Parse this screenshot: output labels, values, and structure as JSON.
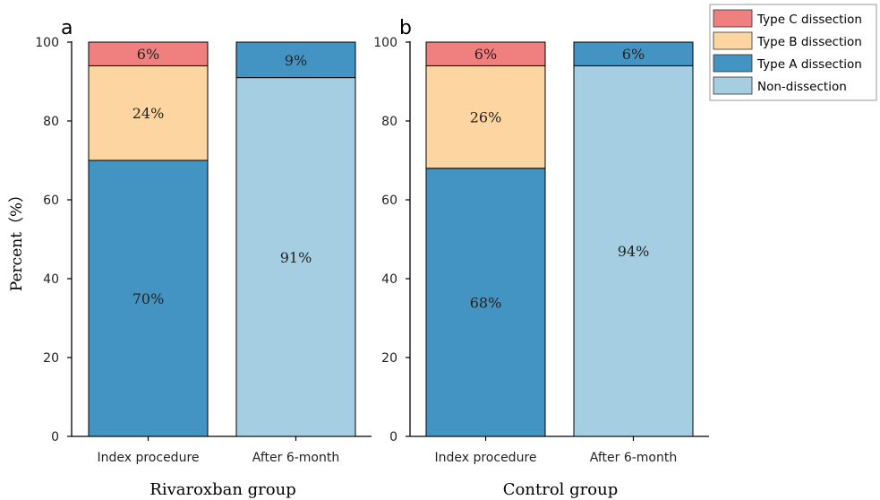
{
  "figure": {
    "legend_placement": "top-right"
  },
  "chart_data": [
    {
      "type": "bar",
      "stacked": true,
      "panel_label": "a",
      "xlabel": "Rivaroxban group",
      "ylabel": "Percent（%）",
      "ylim": [
        0,
        100
      ],
      "yticks": [
        "0",
        "20",
        "40",
        "60",
        "80",
        "100"
      ],
      "grid": false,
      "categories": [
        "Index procedure",
        "After 6-month"
      ],
      "series": [
        {
          "name": "Non-dissection",
          "color": "#a6cee3",
          "values": [
            0,
            91
          ],
          "labels": [
            "",
            "91%"
          ]
        },
        {
          "name": "Type A dissection",
          "color": "#4393c3",
          "values": [
            70,
            9
          ],
          "labels": [
            "70%",
            "9%"
          ]
        },
        {
          "name": "Type B dissection",
          "color": "#fdd5a0",
          "values": [
            24,
            0
          ],
          "labels": [
            "24%",
            ""
          ]
        },
        {
          "name": "Type C dissection",
          "color": "#f08080",
          "values": [
            6,
            0
          ],
          "labels": [
            "6%",
            ""
          ]
        }
      ]
    },
    {
      "type": "bar",
      "stacked": true,
      "panel_label": "b",
      "xlabel": "Control group",
      "ylabel": "",
      "ylim": [
        0,
        100
      ],
      "yticks": [
        "0",
        "20",
        "40",
        "60",
        "80",
        "100"
      ],
      "grid": false,
      "categories": [
        "Index procedure",
        "After 6-month"
      ],
      "series": [
        {
          "name": "Non-dissection",
          "color": "#a6cee3",
          "values": [
            0,
            94
          ],
          "labels": [
            "",
            "94%"
          ]
        },
        {
          "name": "Type A dissection",
          "color": "#4393c3",
          "values": [
            68,
            6
          ],
          "labels": [
            "68%",
            "6%"
          ]
        },
        {
          "name": "Type B dissection",
          "color": "#fdd5a0",
          "values": [
            26,
            0
          ],
          "labels": [
            "26%",
            ""
          ]
        },
        {
          "name": "Type C dissection",
          "color": "#f08080",
          "values": [
            6,
            0
          ],
          "labels": [
            "6%",
            ""
          ]
        }
      ]
    }
  ],
  "legend": {
    "items": [
      {
        "name": "Type C dissection",
        "color": "#f08080"
      },
      {
        "name": "Type B dissection",
        "color": "#fdd5a0"
      },
      {
        "name": "Type A dissection",
        "color": "#4393c3"
      },
      {
        "name": "Non-dissection",
        "color": "#a6cee3"
      }
    ]
  }
}
